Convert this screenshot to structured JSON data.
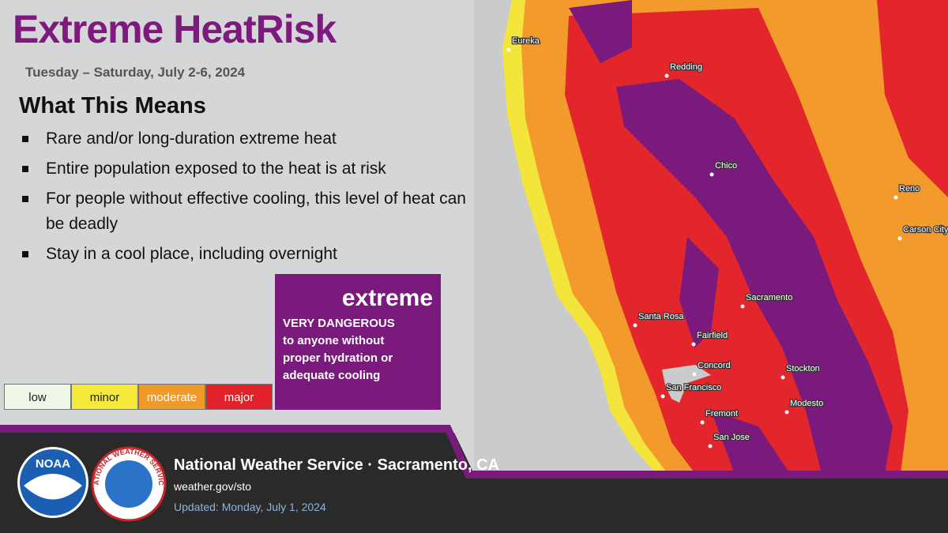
{
  "header": {
    "title": "Extreme HeatRisk",
    "subtitle": "Tuesday – Saturday, July 2-6, 2024"
  },
  "meaning": {
    "heading": "What This Means",
    "bullets": [
      "Rare and/or long-duration extreme heat",
      "Entire population exposed to the heat is at risk",
      "For people without effective cooling, this level of heat can be deadly",
      "Stay in a cool place, including overnight"
    ]
  },
  "legend": {
    "levels": [
      "low",
      "minor",
      "moderate",
      "major"
    ],
    "highlight": {
      "level": "extreme",
      "description": "VERY DANGEROUS to anyone without proper hydration or adequate cooling"
    }
  },
  "map": {
    "cities": [
      "Eureka",
      "Redding",
      "Chico",
      "Reno",
      "Carson City",
      "Sacramento",
      "Santa Rosa",
      "Fairfield",
      "Concord",
      "Stockton",
      "San Francisco",
      "Fremont",
      "Modesto",
      "San Jose"
    ]
  },
  "footer": {
    "noaa_logo": "NOAA",
    "nws_logo": "NATIONAL WEATHER SERVICE",
    "office": "National Weather Service · Sacramento, CA",
    "url": "weather.gov/sto",
    "updated": "Updated: Monday, July 1, 2024"
  }
}
